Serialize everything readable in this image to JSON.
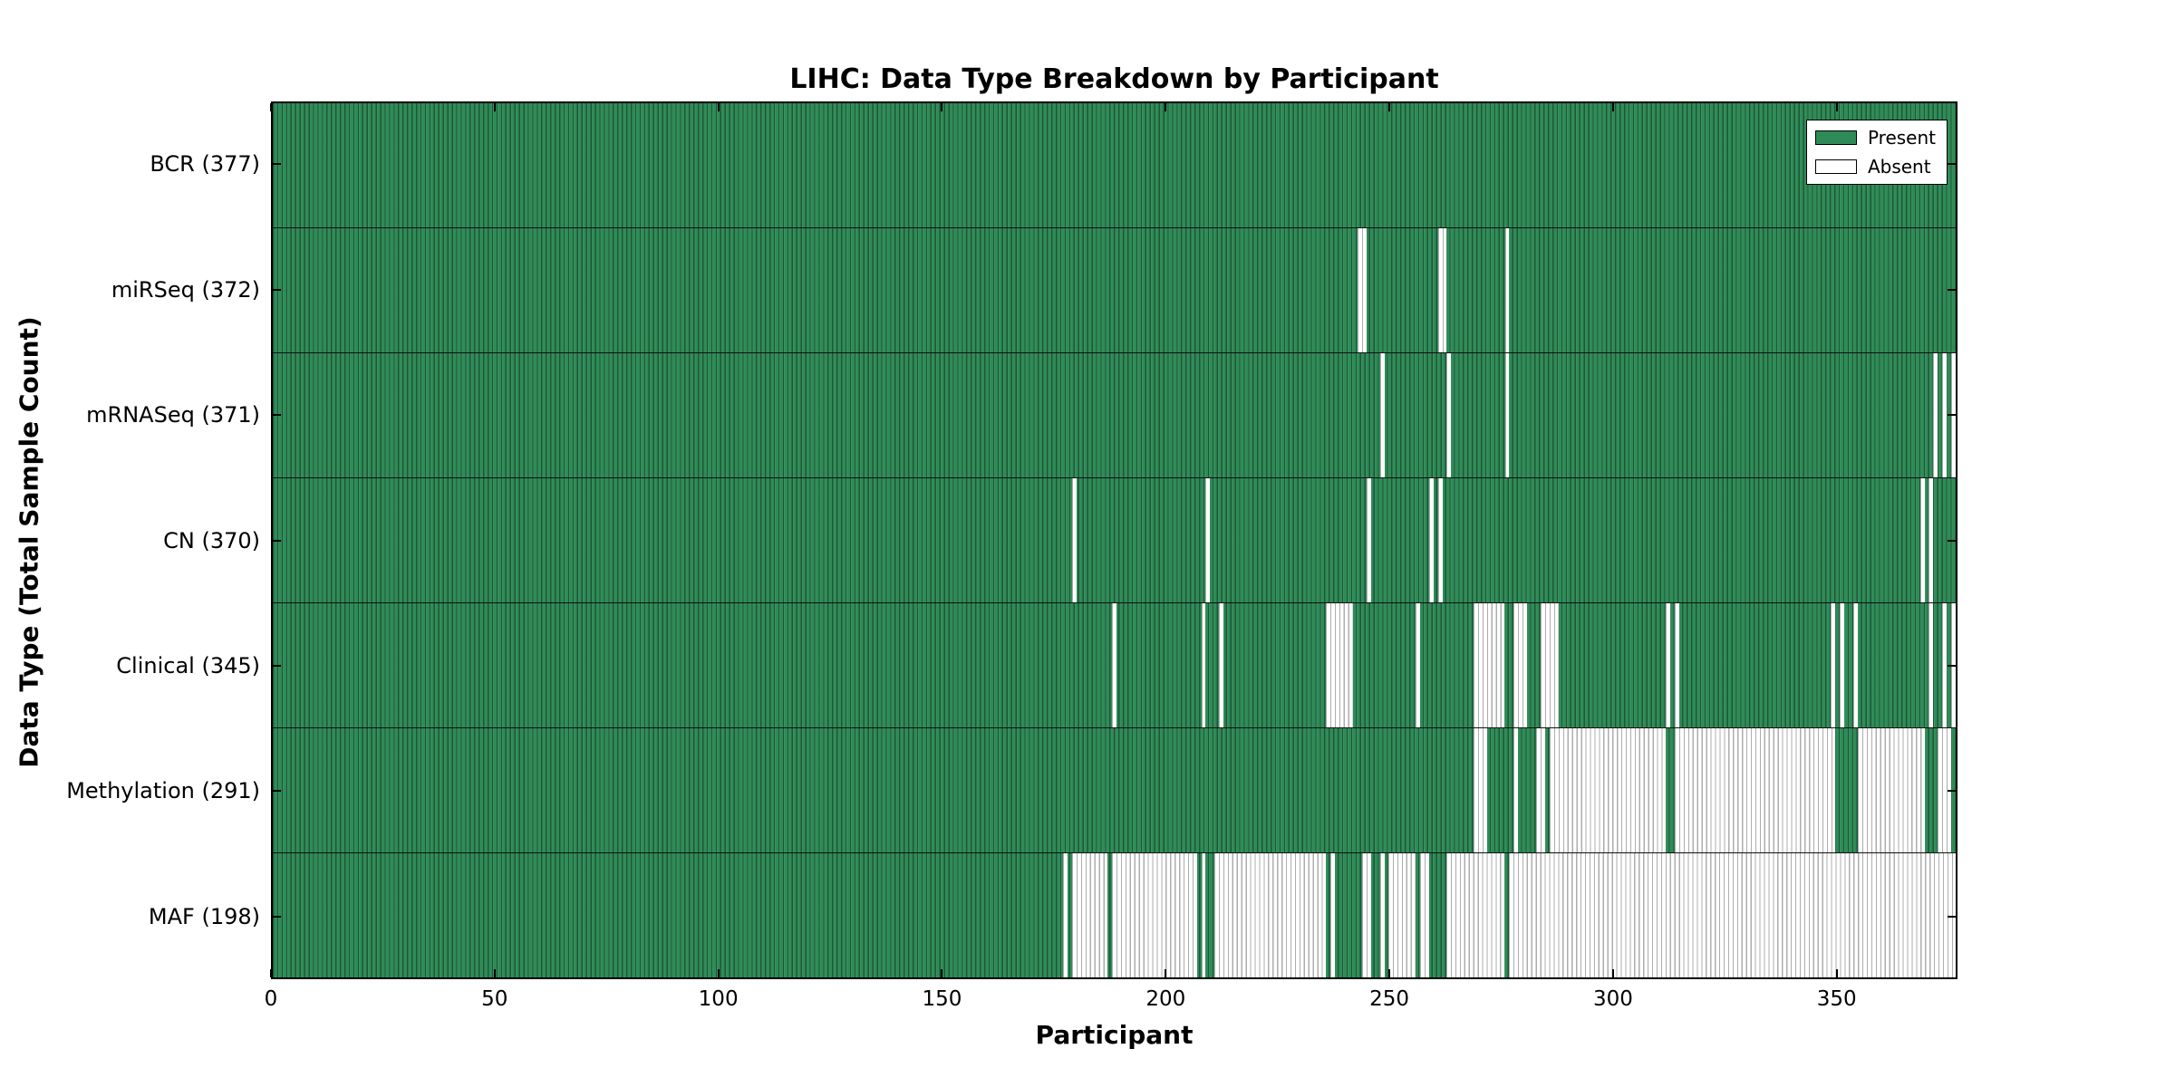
{
  "title": "LIHC: Data Type Breakdown by Participant",
  "legend": {
    "present_label": "Present",
    "absent_label": "Absent",
    "position": "upper right"
  },
  "colors": {
    "present": "#2e8b57",
    "absent": "#ffffff",
    "bar_edge": "#1d5a38",
    "axis": "#000000"
  },
  "chart_data": {
    "type": "heatmap",
    "title": "LIHC: Data Type Breakdown by Participant",
    "xlabel": "Participant",
    "ylabel": "Data Type (Total Sample Count)",
    "x_range": [
      0,
      377
    ],
    "x_ticks": [
      0,
      50,
      100,
      150,
      200,
      250,
      300,
      350
    ],
    "grid": false,
    "legend_position": "upper right",
    "legend_entries": [
      "Present",
      "Absent"
    ],
    "total_participants": 377,
    "rows": [
      {
        "name": "BCR",
        "label": "BCR (377)",
        "present_count": 377,
        "absent_ranges": []
      },
      {
        "name": "miRSeq",
        "label": "miRSeq (372)",
        "present_count": 372,
        "absent_ranges": [
          [
            243,
            245
          ],
          [
            261,
            263
          ],
          [
            276,
            277
          ]
        ]
      },
      {
        "name": "mRNASeq",
        "label": "mRNASeq (371)",
        "present_count": 371,
        "absent_ranges": [
          [
            248,
            249
          ],
          [
            263,
            264
          ],
          [
            276,
            277
          ],
          [
            372,
            373
          ],
          [
            374,
            375
          ],
          [
            376,
            377
          ]
        ]
      },
      {
        "name": "CN",
        "label": "CN (370)",
        "present_count": 370,
        "absent_ranges": [
          [
            179,
            180
          ],
          [
            209,
            210
          ],
          [
            245,
            246
          ],
          [
            259,
            260
          ],
          [
            261,
            262
          ],
          [
            369,
            370
          ],
          [
            371,
            372
          ]
        ]
      },
      {
        "name": "Clinical",
        "label": "Clinical (345)",
        "present_count": 345,
        "absent_ranges": [
          [
            188,
            189
          ],
          [
            208,
            209
          ],
          [
            212,
            213
          ],
          [
            236,
            242
          ],
          [
            256,
            257
          ],
          [
            269,
            276
          ],
          [
            278,
            281
          ],
          [
            284,
            288
          ],
          [
            312,
            313
          ],
          [
            314,
            315
          ],
          [
            349,
            350
          ],
          [
            351,
            352
          ],
          [
            354,
            355
          ],
          [
            371,
            372
          ],
          [
            374,
            375
          ],
          [
            376,
            377
          ]
        ]
      },
      {
        "name": "Methylation",
        "label": "Methylation (291)",
        "present_count": 291,
        "absent_ranges": [
          [
            269,
            272
          ],
          [
            278,
            279
          ],
          [
            283,
            285
          ],
          [
            286,
            312
          ],
          [
            314,
            350
          ],
          [
            355,
            370
          ],
          [
            373,
            376
          ]
        ]
      },
      {
        "name": "MAF",
        "label": "MAF (198)",
        "present_count": 198,
        "absent_ranges": [
          [
            177,
            178
          ],
          [
            179,
            187
          ],
          [
            188,
            207
          ],
          [
            208,
            209
          ],
          [
            211,
            236
          ],
          [
            237,
            238
          ],
          [
            244,
            246
          ],
          [
            248,
            249
          ],
          [
            250,
            256
          ],
          [
            257,
            259
          ],
          [
            263,
            276
          ],
          [
            277,
            377
          ]
        ]
      }
    ]
  }
}
